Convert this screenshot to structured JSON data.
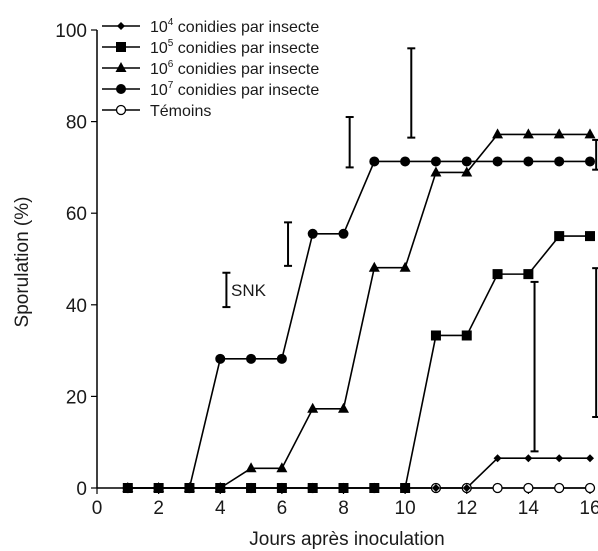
{
  "chart_data": {
    "type": "line",
    "title": "",
    "xlabel": "Jours après inoculation",
    "ylabel": "Sporulation (%)",
    "xlim": [
      0,
      16
    ],
    "ylim": [
      0,
      100
    ],
    "x_ticks": [
      0,
      2,
      4,
      6,
      8,
      10,
      12,
      14,
      16
    ],
    "y_ticks": [
      0,
      20,
      40,
      60,
      80,
      100
    ],
    "grid": false,
    "legend_position": "top-left",
    "x": [
      1,
      2,
      3,
      4,
      5,
      6,
      7,
      8,
      9,
      10,
      11,
      12,
      13,
      14,
      15,
      16
    ],
    "series": [
      {
        "name": "10⁴ conidies par insecte",
        "legend_base": "10",
        "legend_exp": "4",
        "legend_rest": " conidies par insecte",
        "marker": "diamond",
        "values": [
          0,
          0,
          0,
          0,
          0,
          0,
          0,
          0,
          0,
          0,
          0,
          0,
          6.5,
          6.5,
          6.5,
          6.5
        ]
      },
      {
        "name": "10⁵ conidies par insecte",
        "legend_base": "10",
        "legend_exp": "5",
        "legend_rest": " conidies par insecte",
        "marker": "square",
        "values": [
          0,
          0,
          0,
          0,
          0,
          0,
          0,
          0,
          0,
          0,
          33.3,
          33.3,
          46.7,
          46.7,
          55,
          55
        ]
      },
      {
        "name": "10⁶ conidies par insecte",
        "legend_base": "10",
        "legend_exp": "6",
        "legend_rest": " conidies par insecte",
        "marker": "triangle",
        "values": [
          0,
          0,
          0,
          0,
          4.3,
          4.3,
          17.3,
          17.3,
          48.1,
          48.1,
          68.9,
          68.9,
          77.2,
          77.2,
          77.2,
          77.2
        ]
      },
      {
        "name": "10⁷ conidies par insecte",
        "legend_base": "10",
        "legend_exp": "7",
        "legend_rest": " conidies par insecte",
        "marker": "circle",
        "values": [
          0,
          0,
          0,
          28.2,
          28.2,
          28.2,
          55.5,
          55.5,
          71.3,
          71.3,
          71.3,
          71.3,
          71.3,
          71.3,
          71.3,
          71.3
        ]
      },
      {
        "name": "Témoins",
        "legend_base": "Témoins",
        "legend_exp": "",
        "legend_rest": "",
        "marker": "open-circle",
        "values": [
          0,
          0,
          0,
          0,
          0,
          0,
          0,
          0,
          0,
          0,
          0,
          0,
          0,
          0,
          0,
          0
        ]
      }
    ],
    "snk_bars": [
      {
        "x": 4.2,
        "low": 39.5,
        "high": 47
      },
      {
        "x": 6.2,
        "low": 48.5,
        "high": 58
      },
      {
        "x": 8.2,
        "low": 70,
        "high": 81
      },
      {
        "x": 10.2,
        "low": 76.5,
        "high": 96
      },
      {
        "x": 14.2,
        "low": 8,
        "high": 45
      },
      {
        "x": 16.2,
        "low": 15.5,
        "high": 48
      },
      {
        "x": 16.2,
        "low": 69.5,
        "high": 76
      }
    ],
    "annotations": [
      {
        "text": "SNK",
        "x": 4.35,
        "y": 43.2
      }
    ]
  }
}
